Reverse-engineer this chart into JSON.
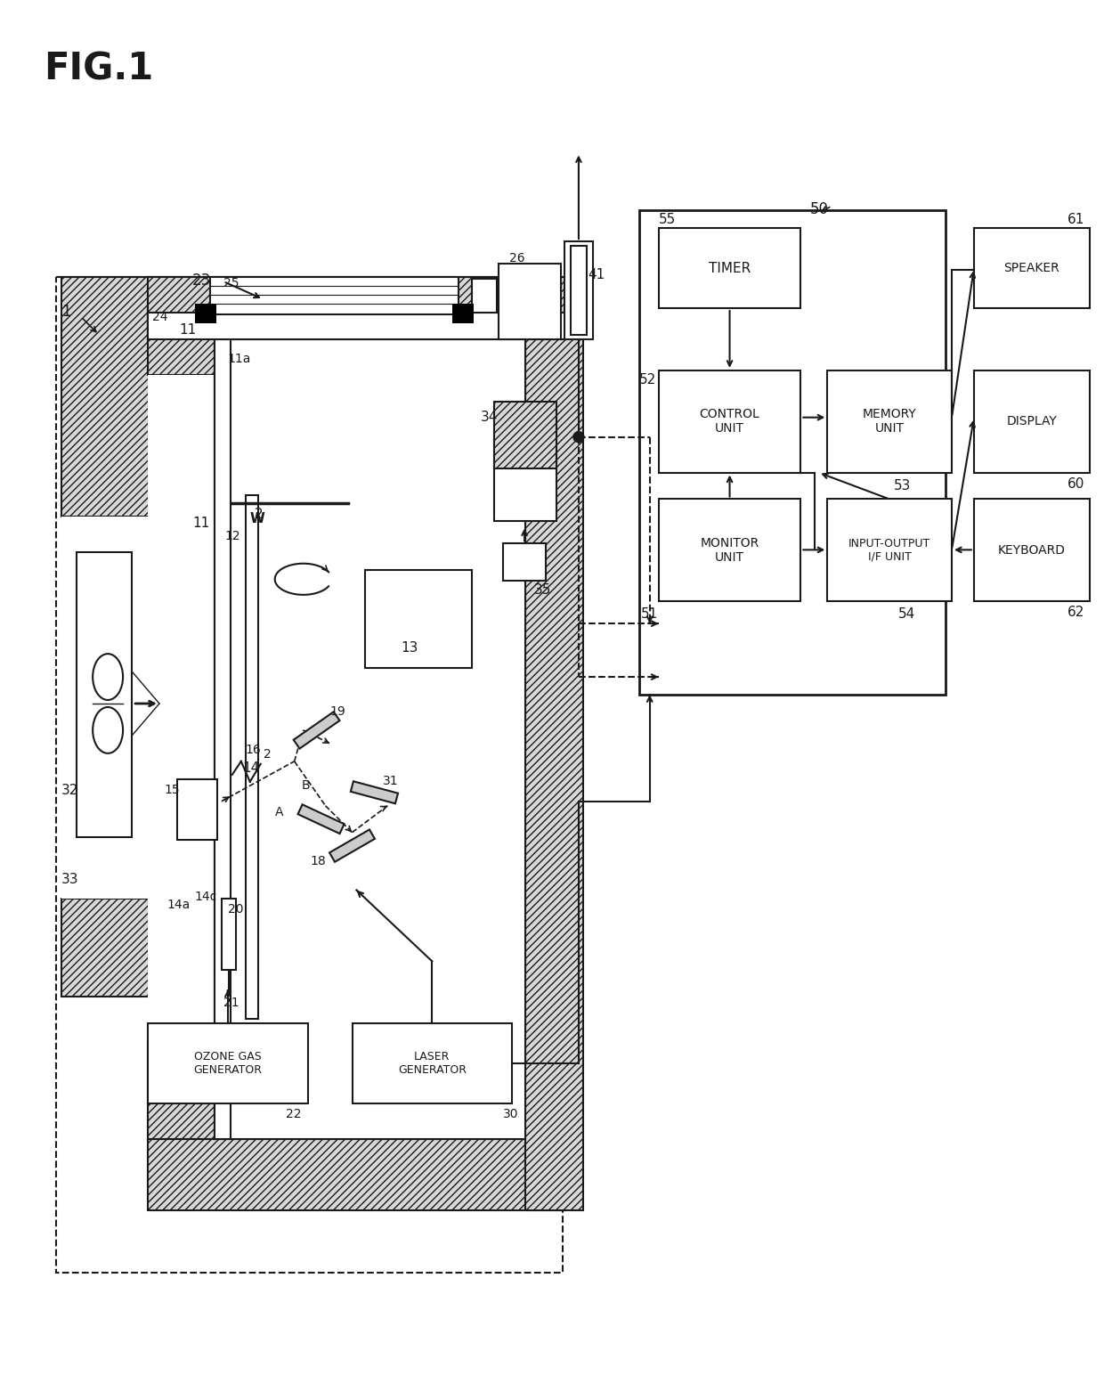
{
  "bg": "#ffffff",
  "lc": "#1a1a1a",
  "fig_label": "FIG.1",
  "timer": "TIMER",
  "control_unit": "CONTROL\nUNIT",
  "memory_unit": "MEMORY\nUNIT",
  "monitor_unit": "MONITOR\nUNIT",
  "io_unit": "INPUT-OUTPUT\nI/F UNIT",
  "laser_gen": "LASER\nGENERATOR",
  "ozone_gen": "OZONE GAS\nGENERATOR",
  "speaker": "SPEAKER",
  "display": "DISPLAY",
  "keyboard": "KEYBOARD"
}
